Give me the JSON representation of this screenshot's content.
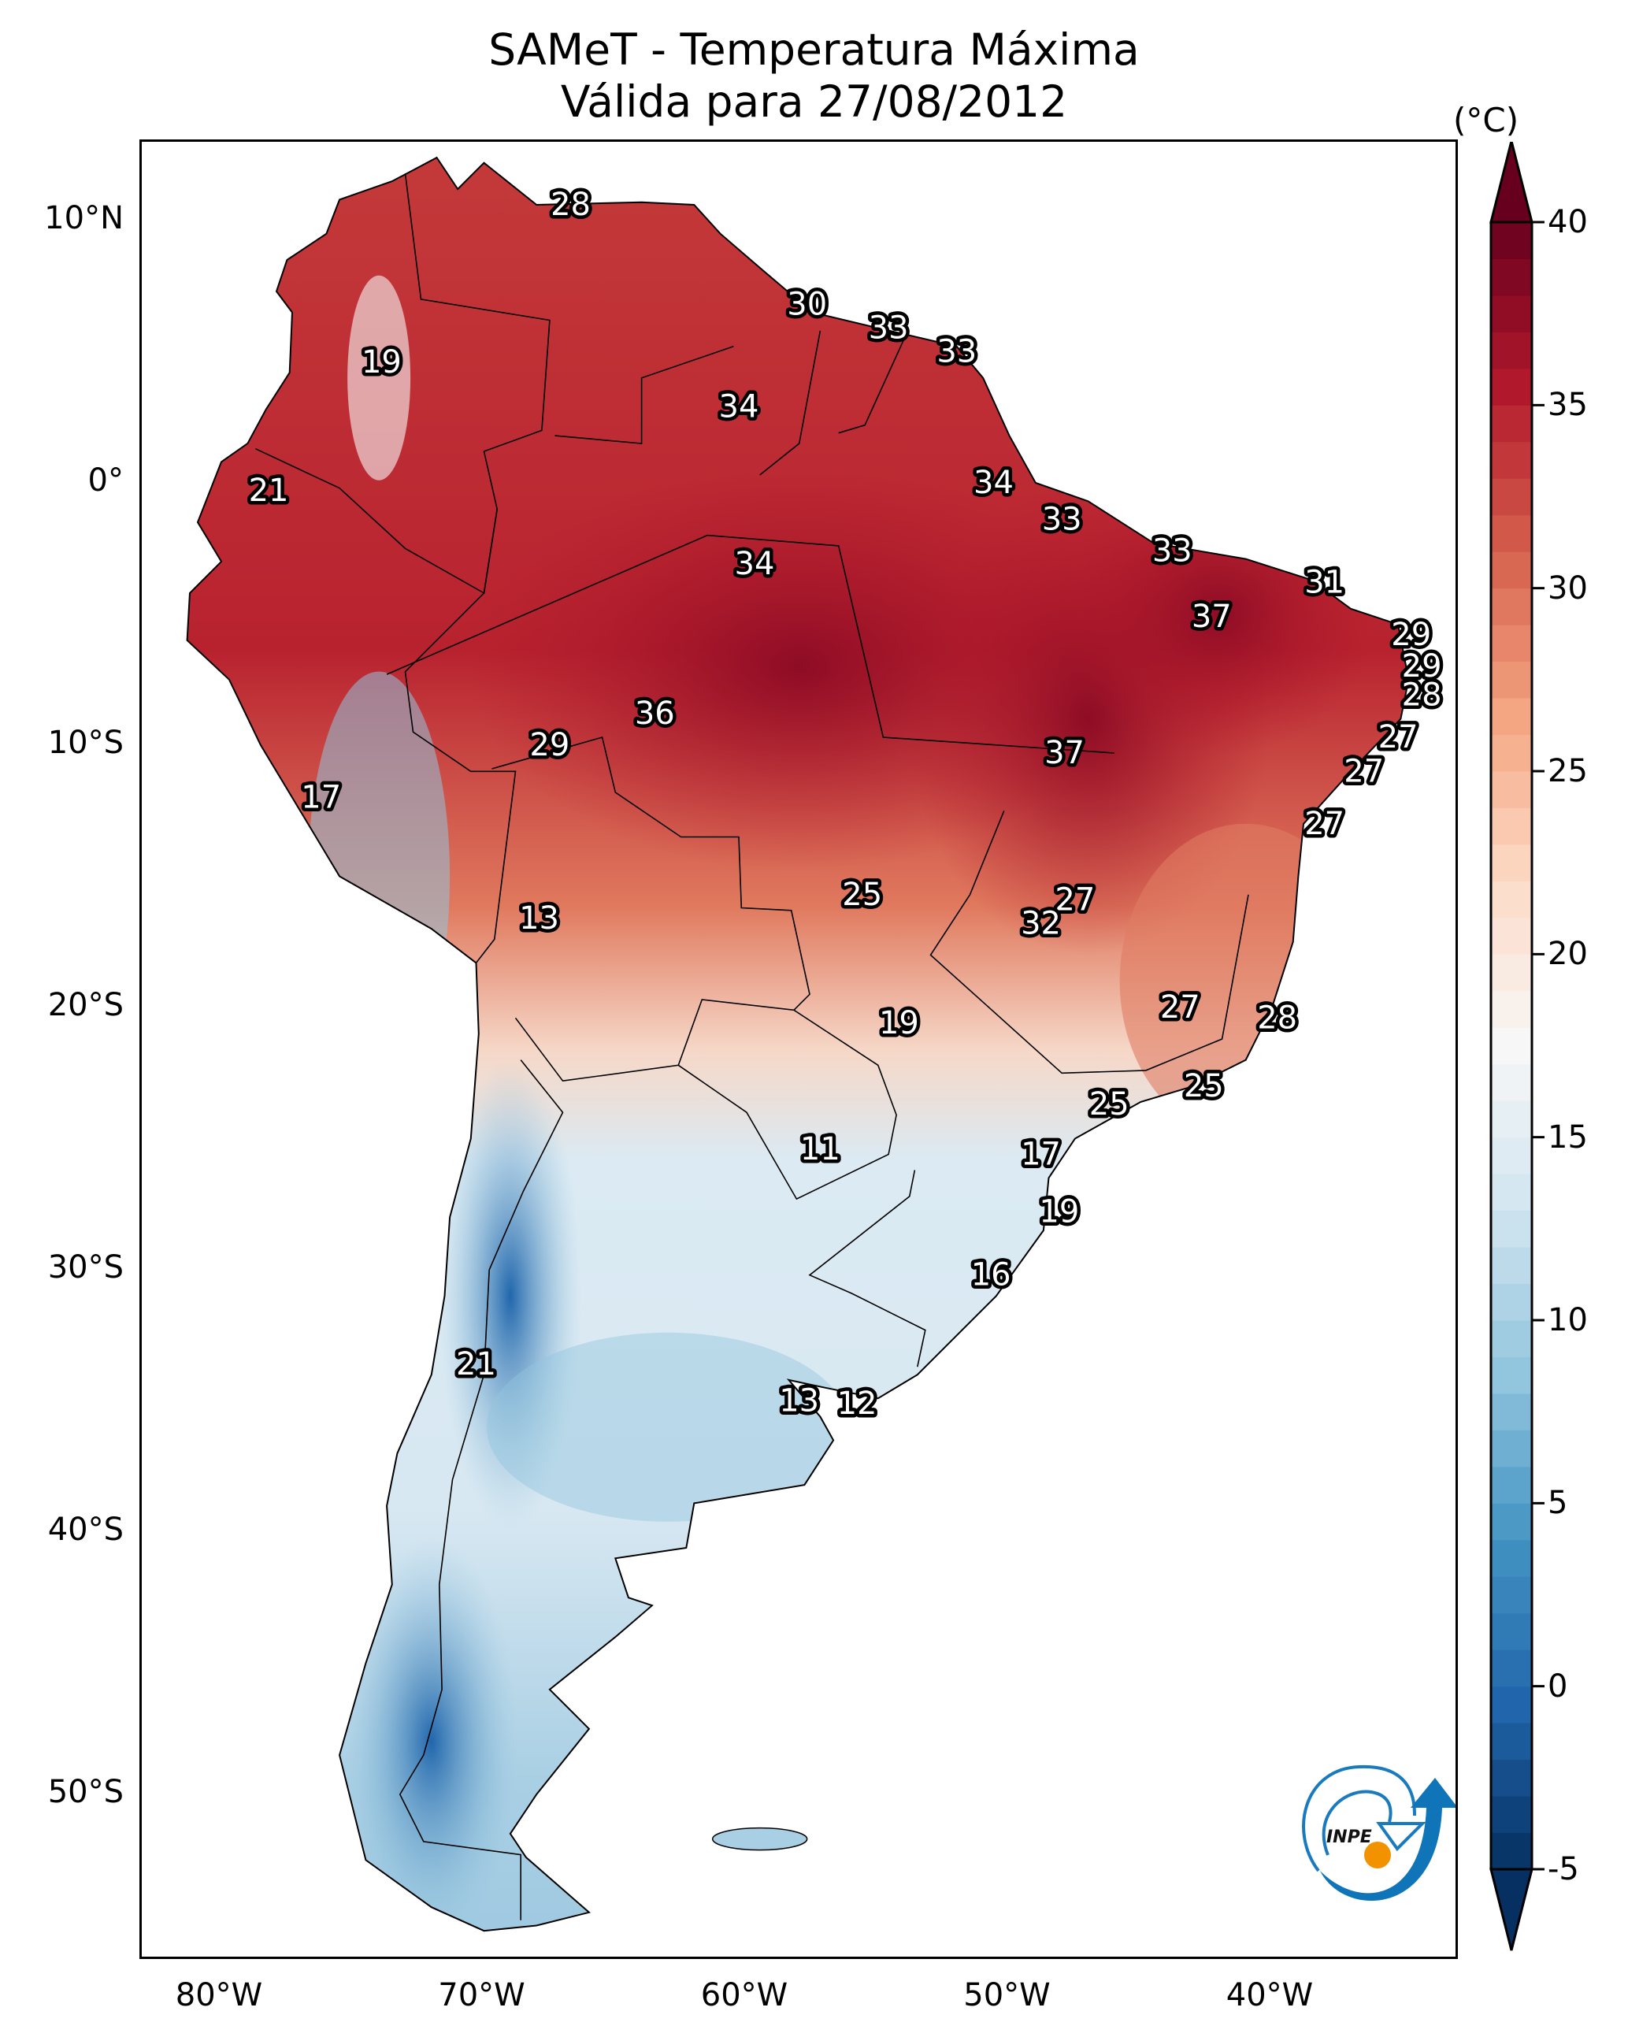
{
  "title": {
    "line1": "SAMeT - Temperatura Máxima",
    "line2": "Válida para 27/08/2012"
  },
  "chart_data": {
    "type": "heatmap",
    "title": "SAMeT - Temperatura Máxima / Válida para 27/08/2012",
    "variable": "Maximum temperature",
    "units": "(°C)",
    "region": "South America",
    "extent": {
      "lon": [
        -83,
        -33
      ],
      "lat": [
        -56.4,
        13
      ]
    },
    "xticks": [
      {
        "value": -80,
        "label": "80°W"
      },
      {
        "value": -70,
        "label": "70°W"
      },
      {
        "value": -60,
        "label": "60°W"
      },
      {
        "value": -50,
        "label": "50°W"
      },
      {
        "value": -40,
        "label": "40°W"
      }
    ],
    "yticks": [
      {
        "value": 10,
        "label": "10°N"
      },
      {
        "value": 0,
        "label": "0°"
      },
      {
        "value": -10,
        "label": "10°S"
      },
      {
        "value": -20,
        "label": "20°S"
      },
      {
        "value": -30,
        "label": "30°S"
      },
      {
        "value": -40,
        "label": "40°S"
      },
      {
        "value": -50,
        "label": "50°S"
      }
    ],
    "colorbar": {
      "label": "(°C)",
      "min": -5,
      "max": 40,
      "extend": "both",
      "ticks": [
        40,
        35,
        30,
        25,
        20,
        15,
        10,
        5,
        0,
        -5
      ],
      "tick_labels": [
        "40",
        "35",
        "30",
        "25",
        "20",
        "15",
        "10",
        "5",
        "0",
        "-5"
      ],
      "colormap": "RdBu_r",
      "colors": [
        "#053061",
        "#2166ac",
        "#4393c3",
        "#92c5de",
        "#d1e5f0",
        "#f7f7f7",
        "#fddbc7",
        "#f4a582",
        "#d6604d",
        "#b2182b",
        "#67001f"
      ]
    },
    "station_labels": [
      {
        "value": 28,
        "lon": -66.7,
        "lat": 10.6
      },
      {
        "value": 30,
        "lon": -57.7,
        "lat": 6.8
      },
      {
        "value": 33,
        "lon": -54.6,
        "lat": 5.9
      },
      {
        "value": 33,
        "lon": -52.0,
        "lat": 5.0
      },
      {
        "value": 19,
        "lon": -73.9,
        "lat": 4.6
      },
      {
        "value": 34,
        "lon": -60.3,
        "lat": 2.9
      },
      {
        "value": 21,
        "lon": -78.2,
        "lat": -0.3
      },
      {
        "value": 34,
        "lon": -50.6,
        "lat": 0.0
      },
      {
        "value": 33,
        "lon": -48.0,
        "lat": -1.4
      },
      {
        "value": 34,
        "lon": -59.7,
        "lat": -3.1
      },
      {
        "value": 33,
        "lon": -43.8,
        "lat": -2.6
      },
      {
        "value": 31,
        "lon": -38.0,
        "lat": -3.8
      },
      {
        "value": 37,
        "lon": -42.3,
        "lat": -5.1
      },
      {
        "value": 29,
        "lon": -34.7,
        "lat": -5.8
      },
      {
        "value": 29,
        "lon": -34.3,
        "lat": -7.0
      },
      {
        "value": 28,
        "lon": -34.3,
        "lat": -8.1
      },
      {
        "value": 36,
        "lon": -63.5,
        "lat": -8.8
      },
      {
        "value": 27,
        "lon": -35.2,
        "lat": -9.7
      },
      {
        "value": 29,
        "lon": -67.5,
        "lat": -10.0
      },
      {
        "value": 37,
        "lon": -47.9,
        "lat": -10.3
      },
      {
        "value": 27,
        "lon": -36.5,
        "lat": -11.0
      },
      {
        "value": 17,
        "lon": -76.2,
        "lat": -12.0
      },
      {
        "value": 27,
        "lon": -38.0,
        "lat": -13.0
      },
      {
        "value": 25,
        "lon": -55.6,
        "lat": -15.7
      },
      {
        "value": 27,
        "lon": -47.5,
        "lat": -15.9
      },
      {
        "value": 13,
        "lon": -67.9,
        "lat": -16.6
      },
      {
        "value": 32,
        "lon": -48.8,
        "lat": -16.8
      },
      {
        "value": 19,
        "lon": -54.2,
        "lat": -20.6
      },
      {
        "value": 27,
        "lon": -43.5,
        "lat": -20.0
      },
      {
        "value": 28,
        "lon": -39.8,
        "lat": -20.4
      },
      {
        "value": 25,
        "lon": -42.6,
        "lat": -23.0
      },
      {
        "value": 25,
        "lon": -46.2,
        "lat": -23.7
      },
      {
        "value": 11,
        "lon": -57.2,
        "lat": -25.4
      },
      {
        "value": 17,
        "lon": -48.8,
        "lat": -25.6
      },
      {
        "value": 19,
        "lon": -48.1,
        "lat": -27.8
      },
      {
        "value": 16,
        "lon": -50.7,
        "lat": -30.2
      },
      {
        "value": 21,
        "lon": -70.3,
        "lat": -33.6
      },
      {
        "value": 13,
        "lon": -58.0,
        "lat": -35.0
      },
      {
        "value": 12,
        "lon": -55.8,
        "lat": -35.1
      }
    ]
  },
  "logo": {
    "text": "INPE"
  }
}
